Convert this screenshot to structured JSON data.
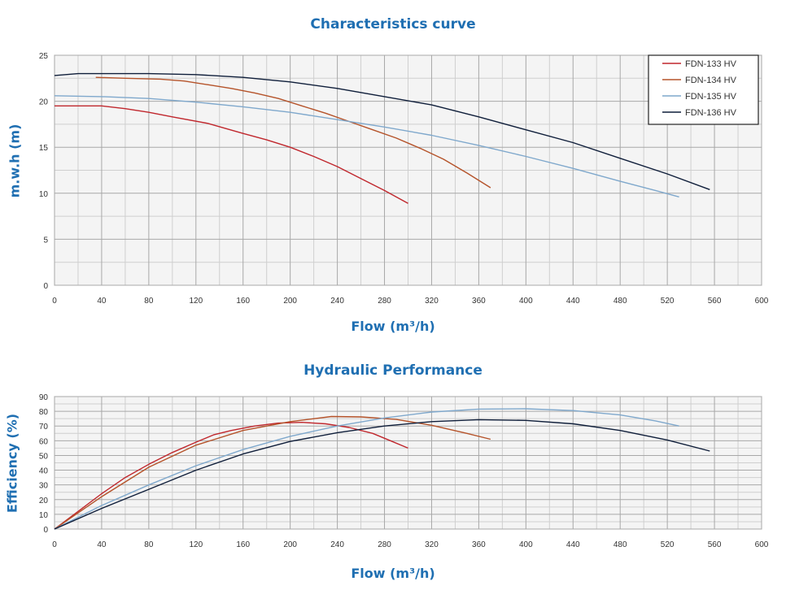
{
  "chart_data": [
    {
      "type": "line",
      "title": "Characteristics curve",
      "xlabel": "Flow (m³/h)",
      "ylabel": "m.w.h (m)",
      "xlim": [
        0,
        600
      ],
      "ylim": [
        0,
        25
      ],
      "xticks": [
        0,
        40,
        80,
        120,
        160,
        200,
        240,
        280,
        320,
        360,
        400,
        440,
        480,
        520,
        560,
        600
      ],
      "yticks": [
        0,
        5,
        10,
        15,
        20,
        25
      ],
      "grid": true,
      "legend": "top-right",
      "series": [
        {
          "name": "FDN-133 HV",
          "color": "#c0272d",
          "x": [
            0,
            20,
            40,
            60,
            80,
            100,
            130,
            160,
            180,
            200,
            220,
            240,
            260,
            280,
            300
          ],
          "y": [
            19.5,
            19.5,
            19.5,
            19.2,
            18.8,
            18.3,
            17.6,
            16.5,
            15.8,
            15.0,
            14.0,
            12.9,
            11.6,
            10.3,
            8.9
          ]
        },
        {
          "name": "FDN-134 HV",
          "color": "#b5532a",
          "x": [
            35,
            60,
            90,
            110,
            130,
            150,
            170,
            190,
            210,
            230,
            250,
            270,
            290,
            310,
            330,
            350,
            370
          ],
          "y": [
            22.6,
            22.5,
            22.4,
            22.2,
            21.8,
            21.4,
            20.9,
            20.3,
            19.5,
            18.7,
            17.8,
            16.9,
            16.0,
            14.9,
            13.7,
            12.2,
            10.6
          ]
        },
        {
          "name": "FDN-135 HV",
          "color": "#7fa8cc",
          "x": [
            0,
            40,
            80,
            120,
            160,
            200,
            240,
            280,
            320,
            360,
            400,
            440,
            480,
            510,
            530
          ],
          "y": [
            20.6,
            20.5,
            20.3,
            19.9,
            19.4,
            18.8,
            18.0,
            17.2,
            16.3,
            15.2,
            14.0,
            12.7,
            11.3,
            10.3,
            9.6
          ]
        },
        {
          "name": "FDN-136 HV",
          "color": "#0f1e3a",
          "x": [
            0,
            20,
            40,
            80,
            120,
            160,
            200,
            240,
            280,
            320,
            360,
            400,
            440,
            480,
            520,
            556
          ],
          "y": [
            22.8,
            23.0,
            23.0,
            23.0,
            22.9,
            22.6,
            22.1,
            21.4,
            20.5,
            19.6,
            18.3,
            16.9,
            15.5,
            13.8,
            12.1,
            10.4
          ]
        }
      ]
    },
    {
      "type": "line",
      "title": "Hydraulic Performance",
      "xlabel": "Flow (m³/h)",
      "ylabel": "Efficiency (%)",
      "xlim": [
        0,
        600
      ],
      "ylim": [
        0,
        90
      ],
      "xticks": [
        0,
        40,
        80,
        120,
        160,
        200,
        240,
        280,
        320,
        360,
        400,
        440,
        480,
        520,
        560,
        600
      ],
      "yticks": [
        0,
        10,
        20,
        30,
        40,
        50,
        60,
        70,
        80,
        90
      ],
      "grid": true,
      "series": [
        {
          "name": "FDN-133 HV",
          "color": "#c0272d",
          "x": [
            0,
            20,
            40,
            60,
            80,
            100,
            120,
            135,
            150,
            170,
            190,
            210,
            230,
            250,
            270,
            285,
            300
          ],
          "y": [
            0,
            12,
            24,
            35,
            44,
            52,
            59,
            64,
            67,
            70,
            72,
            72.5,
            71.5,
            69,
            65,
            60,
            55
          ]
        },
        {
          "name": "FDN-134 HV",
          "color": "#b5532a",
          "x": [
            0,
            40,
            80,
            120,
            160,
            200,
            235,
            260,
            290,
            320,
            350,
            370
          ],
          "y": [
            0,
            22,
            42,
            57,
            67,
            73,
            76.5,
            76.2,
            74.5,
            70.5,
            65,
            61
          ]
        },
        {
          "name": "FDN-135 HV",
          "color": "#7fa8cc",
          "x": [
            0,
            40,
            80,
            120,
            160,
            200,
            240,
            280,
            320,
            360,
            400,
            440,
            480,
            510,
            530
          ],
          "y": [
            0,
            16,
            30,
            43,
            54,
            63,
            70,
            75.5,
            79.5,
            81.5,
            81.7,
            80.5,
            77.5,
            73.5,
            70
          ]
        },
        {
          "name": "FDN-136 HV",
          "color": "#0f1e3a",
          "x": [
            0,
            40,
            80,
            120,
            160,
            200,
            240,
            280,
            320,
            360,
            400,
            440,
            480,
            520,
            556
          ],
          "y": [
            0,
            14,
            27,
            40,
            51,
            59.5,
            65.5,
            70,
            73,
            74.3,
            73.8,
            71.5,
            67,
            60.5,
            53
          ]
        }
      ]
    }
  ]
}
